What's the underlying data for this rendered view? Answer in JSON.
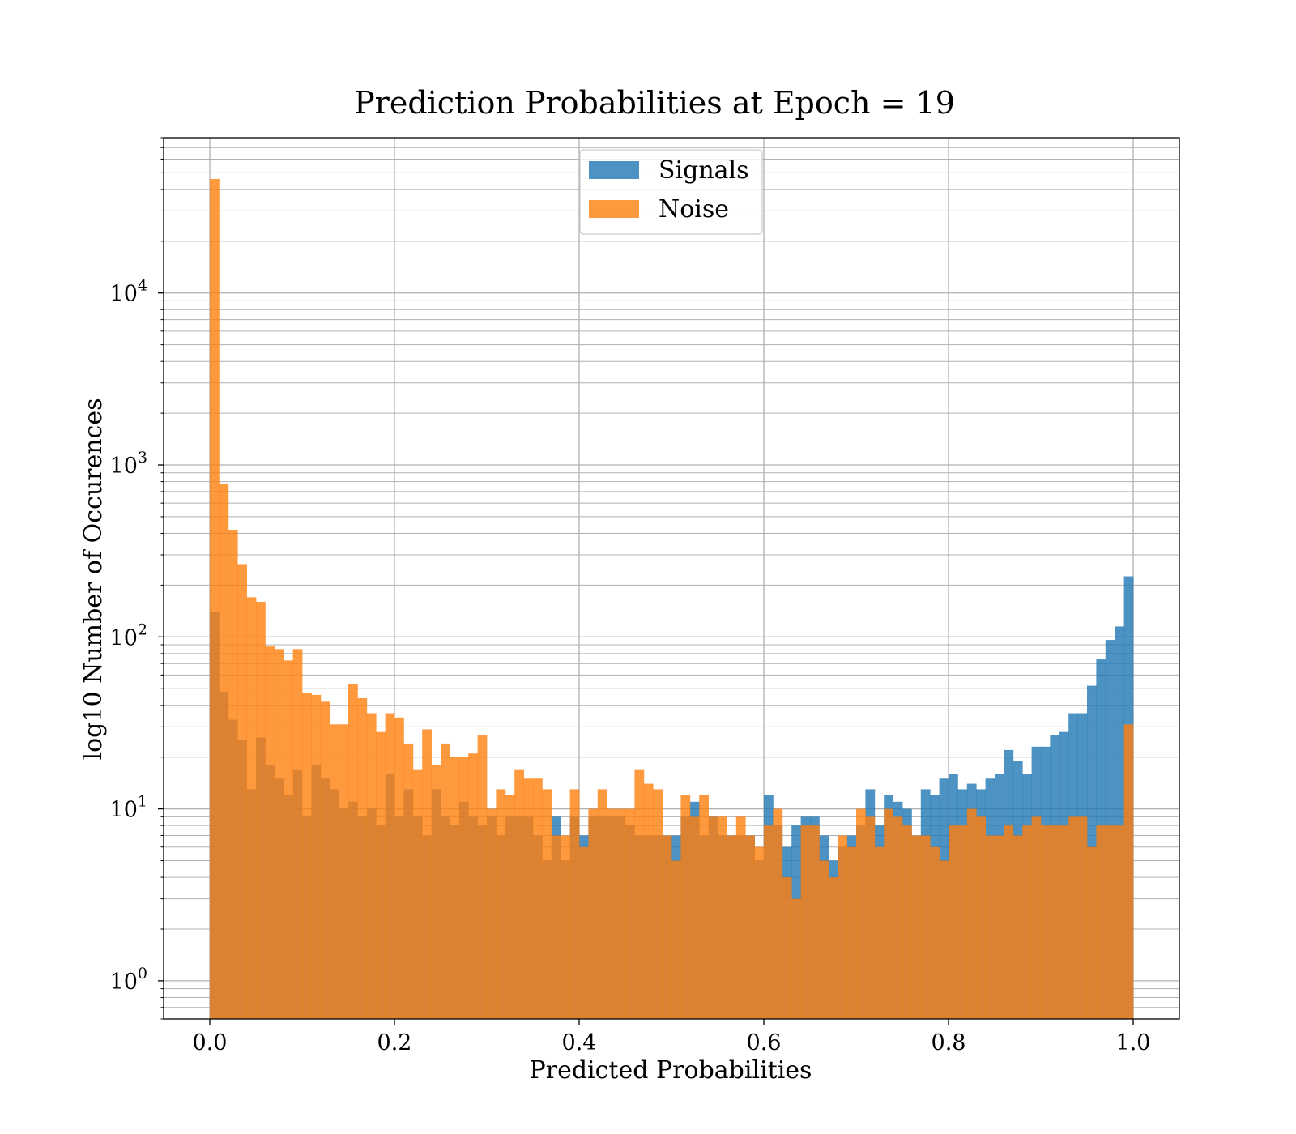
{
  "chart_data": {
    "type": "bar",
    "title": "Prediction Probabilities at Epoch = 19",
    "xlabel": "Predicted Probabilities",
    "ylabel": "log10 Number of Occurences",
    "xlim": [
      -0.05,
      1.05
    ],
    "ylim": [
      0.6,
      80000
    ],
    "yscale": "log",
    "grid": true,
    "grid_minor_y": true,
    "legend_position": "upper center",
    "x_ticks": [
      "0.0",
      "0.2",
      "0.4",
      "0.6",
      "0.8",
      "1.0"
    ],
    "y_ticks": [
      {
        "base": "10",
        "exp": "0"
      },
      {
        "base": "10",
        "exp": "1"
      },
      {
        "base": "10",
        "exp": "2"
      },
      {
        "base": "10",
        "exp": "3"
      },
      {
        "base": "10",
        "exp": "4"
      }
    ],
    "bins": {
      "start": 0.0,
      "end": 1.0,
      "count": 100
    },
    "series": [
      {
        "name": "Signals",
        "color": "#1f77b4",
        "opacity": 0.8,
        "values": [
          140,
          48,
          33,
          25,
          13,
          26,
          18,
          15,
          12,
          17,
          9,
          18,
          15,
          13,
          10,
          11,
          9,
          10,
          8,
          16,
          9,
          13,
          9,
          7,
          13,
          9,
          8,
          11,
          9,
          8,
          9,
          7,
          9,
          9,
          9,
          7,
          5,
          9,
          5,
          9,
          7,
          9,
          9,
          9,
          9,
          8,
          7,
          7,
          7,
          7,
          7,
          9,
          11,
          7,
          9,
          7,
          7,
          7,
          7,
          5,
          12,
          8,
          6,
          8,
          9,
          9,
          7,
          5,
          6,
          7,
          8,
          13,
          8,
          12,
          11,
          10,
          7,
          13,
          12,
          15,
          16,
          13,
          14,
          13,
          15,
          16,
          22,
          19,
          16,
          23,
          23,
          27,
          28,
          36,
          36,
          52,
          74,
          96,
          115,
          225
        ]
      },
      {
        "name": "Noise",
        "color": "#ff7f0e",
        "opacity": 0.8,
        "values": [
          46000,
          780,
          420,
          265,
          170,
          160,
          88,
          85,
          73,
          85,
          47,
          46,
          42,
          31,
          31,
          53,
          44,
          36,
          28,
          36,
          34,
          24,
          17,
          29,
          18,
          24,
          20,
          20,
          21,
          27,
          10,
          13,
          12,
          17,
          15,
          15,
          13,
          7,
          7,
          13,
          6,
          10,
          13,
          10,
          10,
          10,
          17,
          14,
          13,
          7,
          5,
          12,
          9,
          12,
          9,
          9,
          7,
          9,
          7,
          6,
          8,
          10,
          4,
          3,
          8,
          8,
          5,
          4,
          7,
          6,
          10,
          9,
          6,
          10,
          9,
          8,
          7,
          7,
          6,
          5,
          8,
          8,
          10,
          9,
          7,
          7,
          8,
          7,
          8,
          9,
          8,
          8,
          8,
          9,
          9,
          6,
          8,
          8,
          8,
          31
        ]
      }
    ]
  }
}
